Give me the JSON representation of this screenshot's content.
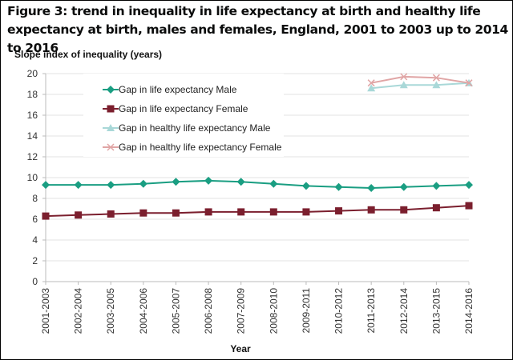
{
  "figure": {
    "title": "Figure 3: trend in inequality in life expectancy at birth and healthy life expectancy at birth, males and females, England, 2001 to 2003 up to 2014 to 2016"
  },
  "chart_data": {
    "type": "line",
    "title": "Figure 3: trend in inequality in life expectancy at birth and healthy life expectancy at birth, males and females, England, 2001 to 2003 up to 2014 to 2016",
    "xlabel": "Year",
    "ylabel": "Slope index of inequality (years)",
    "ylim": [
      0,
      20
    ],
    "yticks": [
      0,
      2,
      4,
      6,
      8,
      10,
      12,
      14,
      16,
      18,
      20
    ],
    "grid": true,
    "legend_position": "top-left",
    "categories": [
      "2001-2003",
      "2002-2004",
      "2003-2005",
      "2004-2006",
      "2005-2007",
      "2006-2008",
      "2007-2009",
      "2008-2010",
      "2009-2011",
      "2010-2012",
      "2011-2013",
      "2012-2014",
      "2013-2015",
      "2014-2016"
    ],
    "series": [
      {
        "name": "Gap in life expectancy Male",
        "color": "#1a9e82",
        "marker": "diamond",
        "values": [
          9.3,
          9.3,
          9.3,
          9.4,
          9.6,
          9.7,
          9.6,
          9.4,
          9.2,
          9.1,
          9.0,
          9.1,
          9.2,
          9.3
        ]
      },
      {
        "name": "Gap in life expectancy Female",
        "color": "#7b1f2e",
        "marker": "square",
        "values": [
          6.3,
          6.4,
          6.5,
          6.6,
          6.6,
          6.7,
          6.7,
          6.7,
          6.7,
          6.8,
          6.9,
          6.9,
          7.1,
          7.3
        ]
      },
      {
        "name": "Gap in healthy life expectancy Male",
        "color": "#a9d8d8",
        "marker": "triangle",
        "values": [
          null,
          null,
          null,
          null,
          null,
          null,
          null,
          null,
          null,
          null,
          18.6,
          18.9,
          18.9,
          19.1
        ]
      },
      {
        "name": "Gap in healthy life expectancy Female",
        "color": "#e0a5a5",
        "marker": "x",
        "values": [
          null,
          null,
          null,
          null,
          null,
          null,
          null,
          null,
          null,
          null,
          19.1,
          19.7,
          19.6,
          19.1
        ]
      }
    ]
  }
}
